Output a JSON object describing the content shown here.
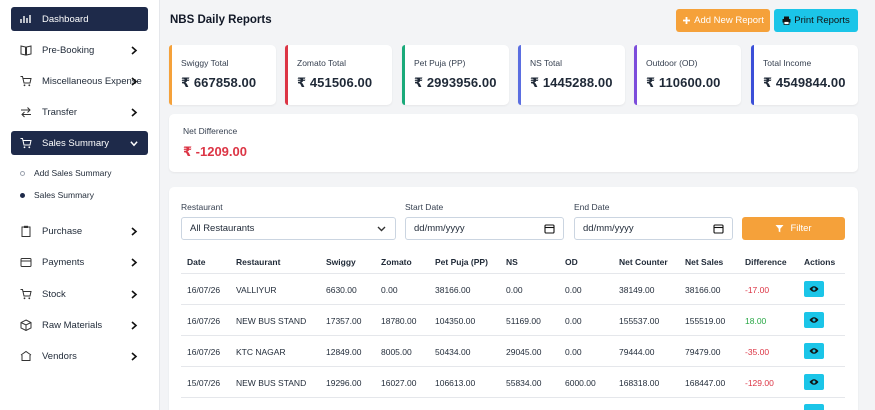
{
  "sidebar": {
    "items": [
      {
        "label": "Dashboard",
        "icon": "dashboard-icon"
      },
      {
        "label": "Pre-Booking",
        "icon": "book-icon"
      },
      {
        "label": "Miscellaneous Expense",
        "icon": "cart-icon"
      },
      {
        "label": "Transfer",
        "icon": "transfer-icon"
      },
      {
        "label": "Sales Summary",
        "icon": "cart-icon"
      },
      {
        "label": "Purchase",
        "icon": "clipboard-icon"
      },
      {
        "label": "Payments",
        "icon": "wallet-icon"
      },
      {
        "label": "Stock",
        "icon": "cart-icon"
      },
      {
        "label": "Raw Materials",
        "icon": "box-icon"
      },
      {
        "label": "Vendors",
        "icon": "vendor-icon"
      }
    ],
    "sub_items": [
      {
        "label": "Add Sales Summary"
      },
      {
        "label": "Sales Summary"
      }
    ]
  },
  "header": {
    "title": "NBS Daily Reports",
    "add_label": "Add New Report",
    "print_label": "Print Reports"
  },
  "stats": [
    {
      "label": "Swiggy Total",
      "value": "₹ 667858.00",
      "color": "#f5a13a"
    },
    {
      "label": "Zomato Total",
      "value": "₹ 451506.00",
      "color": "#dc3545"
    },
    {
      "label": "Pet Puja (PP)",
      "value": "₹ 2993956.00",
      "color": "#1aaa7a"
    },
    {
      "label": "NS Total",
      "value": "₹ 1445288.00",
      "color": "#5b6ee1"
    },
    {
      "label": "Outdoor (OD)",
      "value": "₹ 110600.00",
      "color": "#7c4ddb"
    },
    {
      "label": "Total Income",
      "value": "₹ 4549844.00",
      "color": "#3b4fd8"
    }
  ],
  "net": {
    "label": "Net Difference",
    "value": "₹ -1209.00",
    "color": "#dc3545"
  },
  "filters": {
    "restaurant_label": "Restaurant",
    "restaurant_value": "All Restaurants",
    "start_label": "Start Date",
    "start_placeholder": "dd/mm/yyyy",
    "end_label": "End Date",
    "end_placeholder": "dd/mm/yyyy",
    "filter_label": "Filter"
  },
  "table": {
    "headers": [
      "Date",
      "Restaurant",
      "Swiggy",
      "Zomato",
      "Pet Puja (PP)",
      "NS",
      "OD",
      "Net Counter",
      "Net Sales",
      "Difference",
      "Actions"
    ],
    "rows": [
      {
        "date": "16/07/26",
        "restaurant": "VALLIYUR",
        "swiggy": "6630.00",
        "zomato": "0.00",
        "pp": "38166.00",
        "ns": "0.00",
        "od": "0.00",
        "net_counter": "38149.00",
        "net_sales": "38166.00",
        "difference": "-17.00",
        "diff_type": "neg"
      },
      {
        "date": "16/07/26",
        "restaurant": "NEW BUS STAND",
        "swiggy": "17357.00",
        "zomato": "18780.00",
        "pp": "104350.00",
        "ns": "51169.00",
        "od": "0.00",
        "net_counter": "155537.00",
        "net_sales": "155519.00",
        "difference": "18.00",
        "diff_type": "pos"
      },
      {
        "date": "16/07/26",
        "restaurant": "KTC NAGAR",
        "swiggy": "12849.00",
        "zomato": "8005.00",
        "pp": "50434.00",
        "ns": "29045.00",
        "od": "0.00",
        "net_counter": "79444.00",
        "net_sales": "79479.00",
        "difference": "-35.00",
        "diff_type": "neg"
      },
      {
        "date": "15/07/26",
        "restaurant": "NEW BUS STAND",
        "swiggy": "19296.00",
        "zomato": "16027.00",
        "pp": "106613.00",
        "ns": "55834.00",
        "od": "6000.00",
        "net_counter": "168318.00",
        "net_sales": "168447.00",
        "difference": "-129.00",
        "diff_type": "neg"
      }
    ]
  },
  "colors": {
    "active_nav": "#1e2a4a",
    "accent_orange": "#f5a13a",
    "accent_cyan": "#1bc5e8",
    "negative": "#dc3545",
    "positive": "#28a745"
  }
}
